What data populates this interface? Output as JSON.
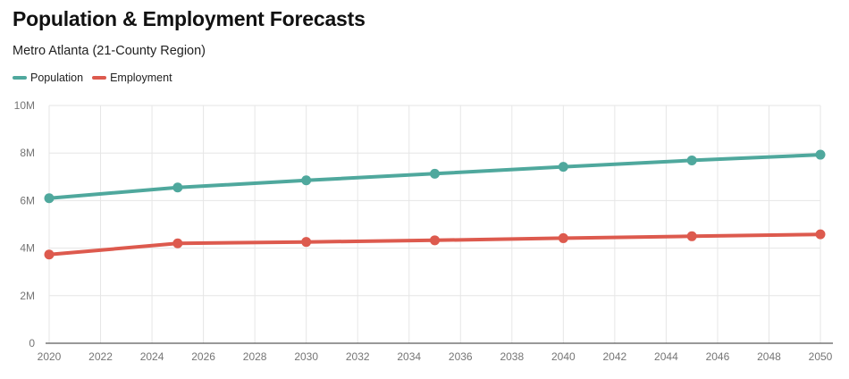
{
  "chart_data": {
    "type": "line",
    "title": "Population & Employment Forecasts",
    "subtitle": "Metro Atlanta (21-County Region)",
    "xlabel": "",
    "ylabel": "",
    "x": [
      2020,
      2025,
      2030,
      2035,
      2040,
      2045,
      2050
    ],
    "xlim": [
      2020,
      2050
    ],
    "xticks": [
      "2020",
      "2022",
      "2024",
      "2026",
      "2028",
      "2030",
      "2032",
      "2034",
      "2036",
      "2038",
      "2040",
      "2042",
      "2044",
      "2046",
      "2048",
      "2050"
    ],
    "ylim": [
      0,
      10000000
    ],
    "yticks": [
      {
        "value": 0,
        "label": "0"
      },
      {
        "value": 2000000,
        "label": "2M"
      },
      {
        "value": 4000000,
        "label": "4M"
      },
      {
        "value": 6000000,
        "label": "6M"
      },
      {
        "value": 8000000,
        "label": "8M"
      },
      {
        "value": 10000000,
        "label": "10M"
      }
    ],
    "grid": true,
    "legend_position": "top-left",
    "series": [
      {
        "name": "Population",
        "color": "#4fa89d",
        "values": [
          6100000,
          6550000,
          6850000,
          7130000,
          7420000,
          7690000,
          7930000
        ]
      },
      {
        "name": "Employment",
        "color": "#dd5a4e",
        "values": [
          3730000,
          4200000,
          4260000,
          4330000,
          4420000,
          4500000,
          4580000
        ]
      }
    ]
  }
}
